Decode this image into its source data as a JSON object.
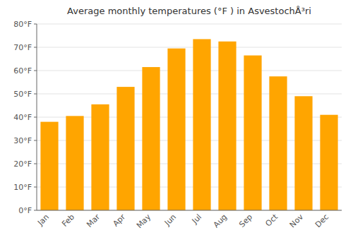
{
  "chart_data": {
    "type": "bar",
    "title": "Average monthly temperatures (°F ) in AsvestochÅ³ri",
    "categories": [
      "Jan",
      "Feb",
      "Mar",
      "Apr",
      "May",
      "Jun",
      "Jul",
      "Aug",
      "Sep",
      "Oct",
      "Nov",
      "Dec"
    ],
    "values": [
      38,
      40.5,
      45.5,
      53,
      61.5,
      69.5,
      73.5,
      72.5,
      66.5,
      57.5,
      49,
      41
    ],
    "color": "#FFA500",
    "ylim": [
      0,
      80
    ],
    "yticks": [
      {
        "value": 0,
        "label": "0°F"
      },
      {
        "value": 10,
        "label": "10°F"
      },
      {
        "value": 20,
        "label": "20°F"
      },
      {
        "value": 30,
        "label": "30°F"
      },
      {
        "value": 40,
        "label": "40°F"
      },
      {
        "value": 50,
        "label": "50°F"
      },
      {
        "value": 60,
        "label": "60°F"
      },
      {
        "value": 70,
        "label": "70°F"
      },
      {
        "value": 80,
        "label": "80°F"
      }
    ],
    "grid": true
  }
}
